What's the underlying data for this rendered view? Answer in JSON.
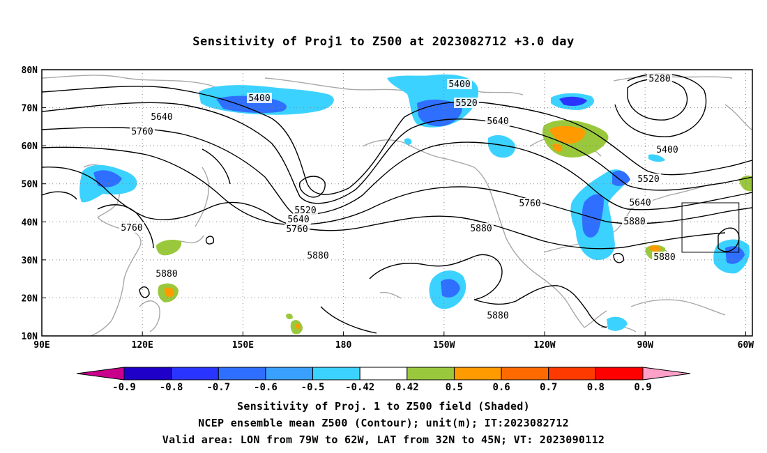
{
  "title": "Sensitivity of Proj1 to Z500 at 2023082712 +3.0 day",
  "map": {
    "lon_range": [
      90,
      302
    ],
    "lat_range": [
      10,
      80
    ],
    "lat_ticks": [
      "80N",
      "70N",
      "60N",
      "50N",
      "40N",
      "30N",
      "20N",
      "10N"
    ],
    "lon_ticks": [
      "90E",
      "120E",
      "150E",
      "180",
      "150W",
      "120W",
      "90W",
      "60W"
    ],
    "grid": "dotted",
    "valid_box": {
      "lon": [
        "79W",
        "62W"
      ],
      "lat": [
        "32N",
        "45N"
      ]
    },
    "contour_labels": [
      "5280",
      "5400",
      "5400",
      "5400",
      "5520",
      "5520",
      "5520",
      "5640",
      "5640",
      "5640",
      "5640",
      "5760",
      "5760",
      "5760",
      "5760",
      "5880",
      "5880",
      "5880",
      "5880",
      "5880",
      "5880"
    ]
  },
  "colorbar": {
    "labels": [
      "-0.9",
      "-0.8",
      "-0.7",
      "-0.6",
      "-0.5",
      "-0.42",
      "0.42",
      "0.5",
      "0.6",
      "0.7",
      "0.8",
      "0.9"
    ],
    "colors": [
      "#c8008c",
      "#1e00c8",
      "#2a34ff",
      "#2f6fff",
      "#3aa0ff",
      "#3cd2ff",
      "#ffffff",
      "#9ac83c",
      "#ff9a00",
      "#ff6a00",
      "#ff3a00",
      "#ff0000",
      "#ffa0c8"
    ]
  },
  "footer": {
    "line1": "Sensitivity of Proj. 1 to Z500 field (Shaded)",
    "line2": "NCEP ensemble mean Z500 (Contour); unit(m); IT:2023082712",
    "line3": "Valid area: LON from 79W to 62W, LAT from 32N to 45N; VT: 2023090112"
  }
}
